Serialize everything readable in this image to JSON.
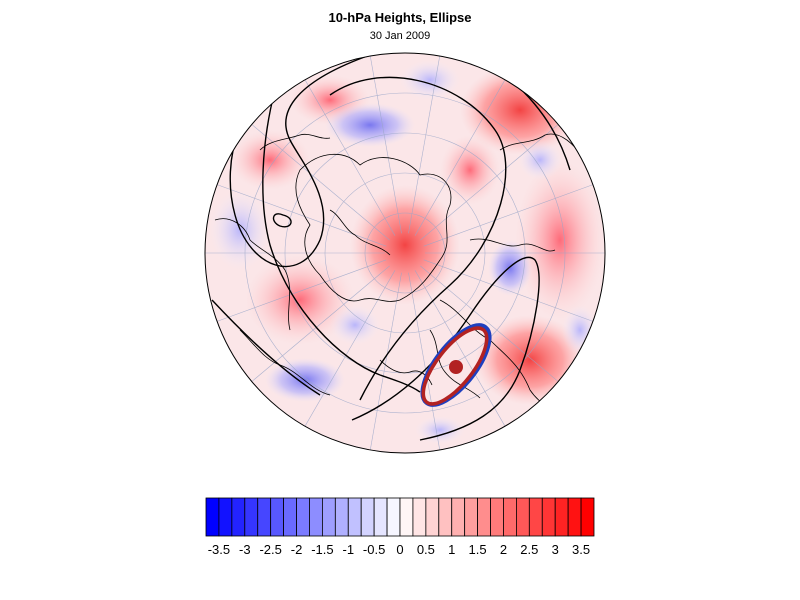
{
  "header": {
    "title": "10-hPa Heights, Ellipse",
    "subtitle": "30 Jan 2009"
  },
  "map": {
    "projection": "north-polar stereographic",
    "field": "height anomaly (shaded)",
    "ellipse_center_color": "#b22222",
    "ellipse_colors": [
      "#b22222",
      "#1f3fbf"
    ],
    "contour_color": "#000000"
  },
  "colorbar": {
    "levels": [
      -3.75,
      -3.5,
      -3.25,
      -3,
      -2.75,
      -2.5,
      -2.25,
      -2,
      -1.75,
      -1.5,
      -1.25,
      -1,
      -0.75,
      -0.5,
      -0.25,
      0,
      0.25,
      0.5,
      0.75,
      1,
      1.25,
      1.5,
      1.75,
      2,
      2.25,
      2.5,
      2.75,
      3,
      3.25,
      3.5,
      3.75
    ],
    "tick_labels": [
      "-3.5",
      "-3",
      "-2.5",
      "-2",
      "-1.5",
      "-1",
      "-0.5",
      "0",
      "0.5",
      "1",
      "1.5",
      "2",
      "2.5",
      "3",
      "3.5"
    ],
    "neg_color": "#0000ff",
    "pos_color": "#ff0000"
  }
}
